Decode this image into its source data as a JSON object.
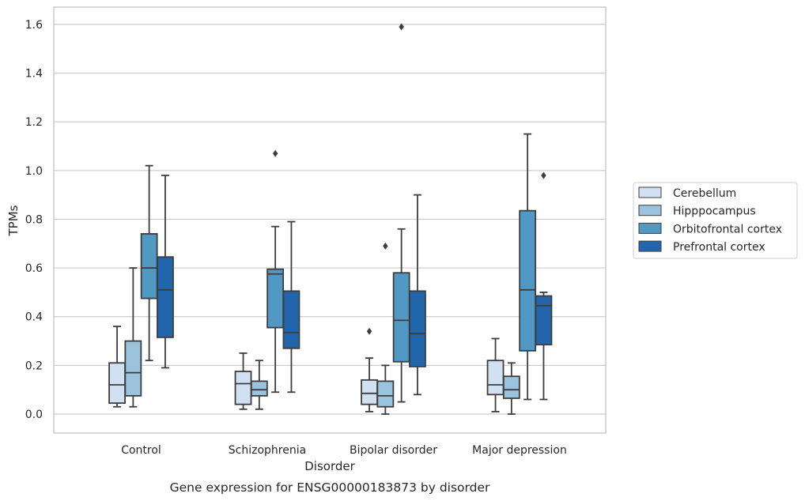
{
  "caption": "Gene expression for ENSG00000183873 by disorder",
  "chart_data": {
    "type": "box",
    "title": "",
    "xlabel": "Disorder",
    "ylabel": "TPMs",
    "ylim": [
      -0.078,
      1.67
    ],
    "yticks": [
      "0.0",
      "0.2",
      "0.4",
      "0.6",
      "0.8",
      "1.0",
      "1.2",
      "1.4",
      "1.6"
    ],
    "ytick_values": [
      0.0,
      0.2,
      0.4,
      0.6,
      0.8,
      1.0,
      1.2,
      1.4,
      1.6
    ],
    "grid": true,
    "legend_position": "right",
    "categories": [
      "Control",
      "Schizophrenia",
      "Bipolar disorder",
      "Major depression"
    ],
    "series": [
      {
        "name": "Cerebellum",
        "color": "#d1e1f1",
        "boxes": [
          {
            "whislo": 0.03,
            "q1": 0.045,
            "med": 0.12,
            "q3": 0.21,
            "whishi": 0.36,
            "fliers": []
          },
          {
            "whislo": 0.02,
            "q1": 0.04,
            "med": 0.125,
            "q3": 0.175,
            "whishi": 0.25,
            "fliers": []
          },
          {
            "whislo": 0.01,
            "q1": 0.04,
            "med": 0.085,
            "q3": 0.14,
            "whishi": 0.23,
            "fliers": [
              0.34
            ]
          },
          {
            "whislo": 0.01,
            "q1": 0.08,
            "med": 0.12,
            "q3": 0.22,
            "whishi": 0.31,
            "fliers": []
          }
        ]
      },
      {
        "name": "Hipppocampus",
        "color": "#9bc3de",
        "boxes": [
          {
            "whislo": 0.03,
            "q1": 0.075,
            "med": 0.17,
            "q3": 0.3,
            "whishi": 0.6,
            "fliers": []
          },
          {
            "whislo": 0.02,
            "q1": 0.075,
            "med": 0.1,
            "q3": 0.135,
            "whishi": 0.22,
            "fliers": []
          },
          {
            "whislo": 0.0,
            "q1": 0.03,
            "med": 0.075,
            "q3": 0.135,
            "whishi": 0.2,
            "fliers": [
              0.69
            ]
          },
          {
            "whislo": 0.0,
            "q1": 0.065,
            "med": 0.1,
            "q3": 0.155,
            "whishi": 0.21,
            "fliers": []
          }
        ]
      },
      {
        "name": "Orbitofrontal cortex",
        "color": "#5198c5",
        "boxes": [
          {
            "whislo": 0.22,
            "q1": 0.475,
            "med": 0.6,
            "q3": 0.74,
            "whishi": 1.02,
            "fliers": []
          },
          {
            "whislo": 0.09,
            "q1": 0.355,
            "med": 0.575,
            "q3": 0.595,
            "whishi": 0.77,
            "fliers": [
              1.07
            ]
          },
          {
            "whislo": 0.05,
            "q1": 0.215,
            "med": 0.385,
            "q3": 0.58,
            "whishi": 0.76,
            "fliers": [
              1.59
            ]
          },
          {
            "whislo": 0.06,
            "q1": 0.26,
            "med": 0.51,
            "q3": 0.835,
            "whishi": 1.15,
            "fliers": []
          }
        ]
      },
      {
        "name": "Prefrontal cortex",
        "color": "#2166ac",
        "boxes": [
          {
            "whislo": 0.19,
            "q1": 0.315,
            "med": 0.51,
            "q3": 0.645,
            "whishi": 0.98,
            "fliers": []
          },
          {
            "whislo": 0.09,
            "q1": 0.27,
            "med": 0.335,
            "q3": 0.505,
            "whishi": 0.79,
            "fliers": []
          },
          {
            "whislo": 0.08,
            "q1": 0.195,
            "med": 0.33,
            "q3": 0.505,
            "whishi": 0.9,
            "fliers": []
          },
          {
            "whislo": 0.06,
            "q1": 0.285,
            "med": 0.445,
            "q3": 0.485,
            "whishi": 0.5,
            "fliers": [
              0.98
            ]
          }
        ]
      }
    ]
  }
}
